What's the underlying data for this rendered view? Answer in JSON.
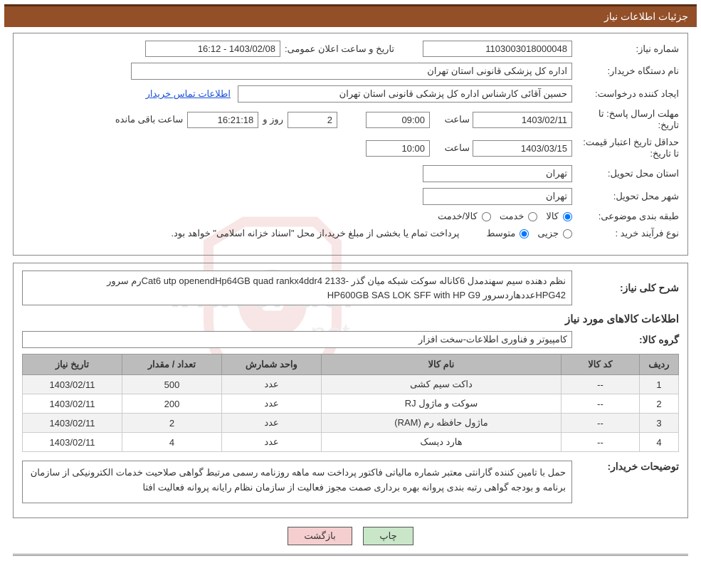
{
  "header": {
    "title": "جزئیات اطلاعات نیاز"
  },
  "form": {
    "need_no_label": "شماره نیاز:",
    "need_no": "1103003018000048",
    "announce_label": "تاریخ و ساعت اعلان عمومی:",
    "announce_value": "1403/02/08 - 16:12",
    "buyer_org_label": "نام دستگاه خریدار:",
    "buyer_org": "اداره کل پزشکی قانونی استان تهران",
    "requester_label": "ایجاد کننده درخواست:",
    "requester": "حسین آقائی کارشناس اداره کل پزشکی قانونی استان تهران",
    "buyer_contact_link": "اطلاعات تماس خریدار",
    "deadline_label": "مهلت ارسال پاسخ: تا تاریخ:",
    "deadline_date": "1403/02/11",
    "time_label": "ساعت",
    "deadline_time": "09:00",
    "days_left": "2",
    "days_label": "روز و",
    "countdown": "16:21:18",
    "remain_label": "ساعت باقی مانده",
    "validity_label": "حداقل تاریخ اعتبار قیمت: تا تاریخ:",
    "validity_date": "1403/03/15",
    "validity_time": "10:00",
    "province_label": "استان محل تحویل:",
    "province": "تهران",
    "city_label": "شهر محل تحویل:",
    "city": "تهران",
    "category_label": "طبقه بندی موضوعی:",
    "cat_goods": "کالا",
    "cat_service": "خدمت",
    "cat_goods_service": "کالا/خدمت",
    "process_label": "نوع فرآیند خرید :",
    "proc_partial": "جزیی",
    "proc_medium": "متوسط",
    "process_note": "پرداخت تمام یا بخشی از مبلغ خرید،از محل \"اسناد خزانه اسلامی\" خواهد بود."
  },
  "detail": {
    "desc_label": "شرح کلی نیاز:",
    "desc": "نظم دهنده سیم سهندمدل 6کاناله سوکت شبکه میان گذر -Cat6 utp openendHp64GB quad rankx4ddr4 2133رم سرور HPG42عددهاردسرور HP600GB SAS LOK SFF with HP G9",
    "items_title": "اطلاعات کالاهای مورد نیاز",
    "group_label": "گروه کالا:",
    "group": "کامپیوتر و فناوری اطلاعات-سخت افزار",
    "buyer_notes_label": "توضیحات خریدار:",
    "buyer_notes": "حمل با تامین کننده گارانتی معتبر شماره مالیاتی فاکتور پرداخت سه ماهه روزنامه رسمی مرتبط گواهی صلاحیت خدمات الکترونیکی از سازمان برنامه و بودجه گواهی رتبه بندی  پروانه بهره برداری صمت مجوز فعالیت از سازمان نظام رایانه پروانه فعالیت افتا"
  },
  "table": {
    "headers": {
      "row": "ردیف",
      "code": "کد کالا",
      "name": "نام کالا",
      "unit": "واحد شمارش",
      "qty": "تعداد / مقدار",
      "date": "تاریخ نیاز"
    },
    "rows": [
      {
        "n": "1",
        "code": "--",
        "name": "داکت سیم کشی",
        "unit": "عدد",
        "qty": "500",
        "date": "1403/02/11"
      },
      {
        "n": "2",
        "code": "--",
        "name": "سوکت و ماژول RJ",
        "unit": "عدد",
        "qty": "200",
        "date": "1403/02/11"
      },
      {
        "n": "3",
        "code": "--",
        "name": "ماژول حافظه رم (RAM)",
        "unit": "عدد",
        "qty": "2",
        "date": "1403/02/11"
      },
      {
        "n": "4",
        "code": "--",
        "name": "هارد دیسک",
        "unit": "عدد",
        "qty": "4",
        "date": "1403/02/11"
      }
    ]
  },
  "buttons": {
    "print": "چاپ",
    "back": "بازگشت"
  },
  "watermark": {
    "text": "AriaTender.net"
  },
  "colors": {
    "header_bg": "#924f28",
    "header_border": "#5a2f15",
    "link": "#1a4fd8",
    "th_bg": "#bcbcbc",
    "btn_print": "#c9e6c9",
    "btn_back": "#f5cfcf"
  }
}
